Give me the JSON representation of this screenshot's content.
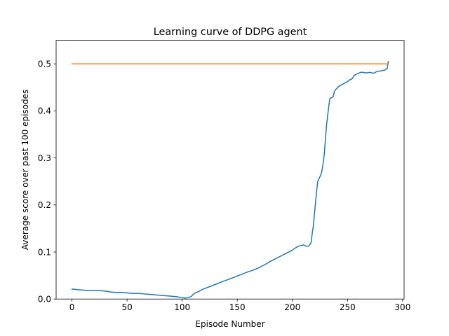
{
  "chart_data": {
    "type": "line",
    "title": "Learning curve of DDPG agent",
    "xlabel": "Episode Number",
    "ylabel": "Average score over past 100 episodes",
    "xlim": [
      -14.35,
      301.35
    ],
    "ylim": [
      0,
      0.55
    ],
    "xticks": [
      0,
      50,
      100,
      150,
      200,
      250,
      300
    ],
    "yticks": [
      0.0,
      0.1,
      0.2,
      0.3,
      0.4,
      0.5
    ],
    "xtick_labels": [
      "0",
      "50",
      "100",
      "150",
      "200",
      "250",
      "300"
    ],
    "ytick_labels": [
      "0.0",
      "0.1",
      "0.2",
      "0.3",
      "0.4",
      "0.5"
    ],
    "grid": false,
    "legend": "none",
    "series": [
      {
        "color": "#1f77b4",
        "x": [
          0,
          2,
          5,
          10,
          15,
          20,
          25,
          30,
          35,
          40,
          45,
          50,
          55,
          60,
          65,
          70,
          75,
          80,
          85,
          90,
          95,
          100,
          103,
          105,
          108,
          110,
          112,
          115,
          118,
          120,
          130,
          140,
          150,
          160,
          165,
          170,
          175,
          180,
          185,
          190,
          195,
          200,
          203,
          205,
          208,
          210,
          213,
          215,
          217,
          218,
          219,
          220,
          221,
          222,
          223,
          224,
          225,
          226,
          227,
          228,
          229,
          230,
          231,
          232,
          233,
          234,
          235,
          236,
          237,
          238,
          239,
          240,
          242,
          244,
          246,
          248,
          250,
          252,
          254,
          256,
          258,
          260,
          262,
          264,
          266,
          268,
          270,
          272,
          274,
          276,
          278,
          280,
          282,
          284,
          286,
          287
        ],
        "y": [
          0.021,
          0.021,
          0.02,
          0.019,
          0.018,
          0.018,
          0.018,
          0.017,
          0.015,
          0.014,
          0.014,
          0.013,
          0.012,
          0.012,
          0.011,
          0.01,
          0.009,
          0.008,
          0.007,
          0.006,
          0.005,
          0.003,
          0.002,
          0.003,
          0.005,
          0.01,
          0.013,
          0.016,
          0.02,
          0.022,
          0.031,
          0.04,
          0.049,
          0.058,
          0.062,
          0.067,
          0.073,
          0.08,
          0.086,
          0.092,
          0.098,
          0.104,
          0.109,
          0.112,
          0.114,
          0.115,
          0.112,
          0.113,
          0.12,
          0.14,
          0.155,
          0.18,
          0.205,
          0.23,
          0.25,
          0.255,
          0.26,
          0.265,
          0.275,
          0.29,
          0.31,
          0.34,
          0.37,
          0.39,
          0.41,
          0.426,
          0.428,
          0.428,
          0.43,
          0.44,
          0.445,
          0.447,
          0.452,
          0.455,
          0.457,
          0.46,
          0.462,
          0.466,
          0.468,
          0.475,
          0.478,
          0.48,
          0.482,
          0.482,
          0.481,
          0.481,
          0.482,
          0.481,
          0.48,
          0.483,
          0.484,
          0.485,
          0.486,
          0.487,
          0.49,
          0.505
        ]
      },
      {
        "color": "#ff7f0e",
        "x": [
          0,
          287
        ],
        "y": [
          0.5,
          0.5
        ]
      }
    ]
  }
}
